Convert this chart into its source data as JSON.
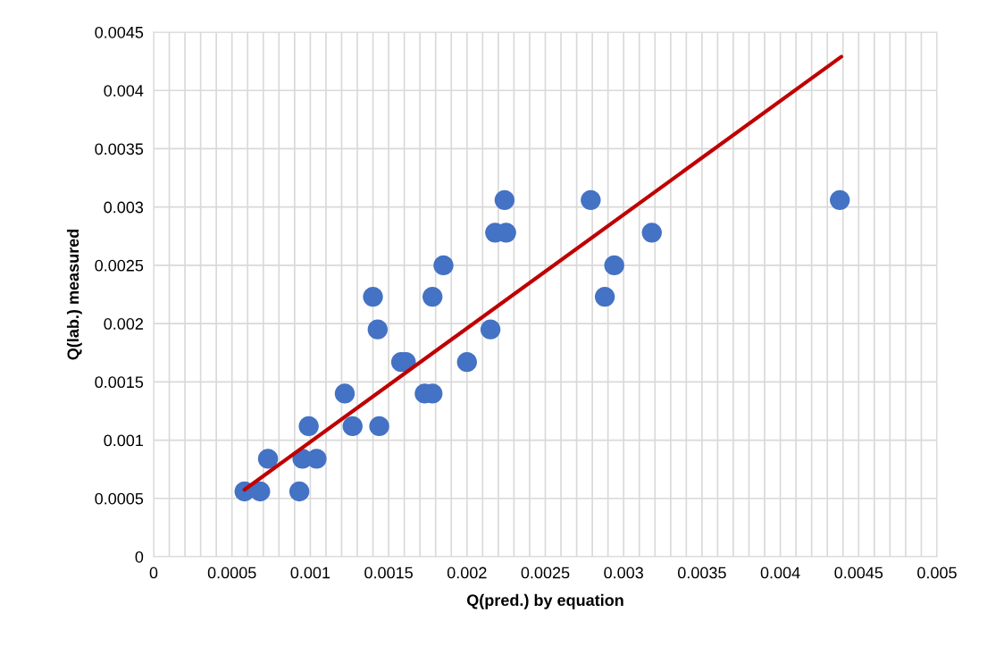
{
  "chart_data": {
    "type": "scatter",
    "xlabel": "Q(pred.) by equation",
    "ylabel": "Q(lab.) measured",
    "xlim": [
      0,
      0.005
    ],
    "ylim": [
      0,
      0.0045
    ],
    "xticks": [
      0,
      {
        "value": 0.0001,
        "label": null
      },
      {
        "value": 0.0002,
        "label": null
      },
      {
        "value": 0.0003,
        "label": null
      },
      {
        "value": 0.0004,
        "label": null
      },
      0.0005,
      {
        "value": 0.0006,
        "label": null
      },
      {
        "value": 0.0007,
        "label": null
      },
      {
        "value": 0.0008,
        "label": null
      },
      {
        "value": 0.0009,
        "label": null
      },
      0.001,
      {
        "value": 0.0011,
        "label": null
      },
      {
        "value": 0.0012,
        "label": null
      },
      {
        "value": 0.0013,
        "label": null
      },
      {
        "value": 0.0014,
        "label": null
      },
      0.0015,
      {
        "value": 0.0016,
        "label": null
      },
      {
        "value": 0.0017,
        "label": null
      },
      {
        "value": 0.0018,
        "label": null
      },
      {
        "value": 0.0019,
        "label": null
      },
      0.002,
      {
        "value": 0.0021,
        "label": null
      },
      {
        "value": 0.0022,
        "label": null
      },
      {
        "value": 0.0023,
        "label": null
      },
      {
        "value": 0.0024,
        "label": null
      },
      0.0025,
      {
        "value": 0.0026,
        "label": null
      },
      {
        "value": 0.0027,
        "label": null
      },
      {
        "value": 0.0028,
        "label": null
      },
      {
        "value": 0.0029,
        "label": null
      },
      0.003,
      {
        "value": 0.0031,
        "label": null
      },
      {
        "value": 0.0032,
        "label": null
      },
      {
        "value": 0.0033,
        "label": null
      },
      {
        "value": 0.0034,
        "label": null
      },
      0.0035,
      {
        "value": 0.0036,
        "label": null
      },
      {
        "value": 0.0037,
        "label": null
      },
      {
        "value": 0.0038,
        "label": null
      },
      {
        "value": 0.0039,
        "label": null
      },
      0.004,
      {
        "value": 0.0041,
        "label": null
      },
      {
        "value": 0.0042,
        "label": null
      },
      {
        "value": 0.0043,
        "label": null
      },
      {
        "value": 0.0044,
        "label": null
      },
      0.0045,
      {
        "value": 0.0046,
        "label": null
      },
      {
        "value": 0.0047,
        "label": null
      },
      {
        "value": 0.0048,
        "label": null
      },
      {
        "value": 0.0049,
        "label": null
      },
      0.005
    ],
    "yticks": [
      0,
      0.0005,
      0.001,
      0.0015,
      0.002,
      0.0025,
      0.003,
      0.0035,
      0.004,
      0.0045
    ],
    "grid": true,
    "marker": "circle",
    "series": [
      {
        "color": "#4472c4",
        "x": [
          0.00058,
          0.00068,
          0.00093,
          0.00073,
          0.00095,
          0.00104,
          0.00099,
          0.00127,
          0.00144,
          0.00122,
          0.00173,
          0.00178,
          0.00158,
          0.00161,
          0.002,
          0.00143,
          0.00215,
          0.0014,
          0.00178,
          0.00288,
          0.00185,
          0.00294,
          0.00218,
          0.00225,
          0.00318,
          0.00224,
          0.00279,
          0.00438
        ],
        "values": [
          0.00056,
          0.00056,
          0.00056,
          0.00084,
          0.00084,
          0.00084,
          0.00112,
          0.00112,
          0.00112,
          0.0014,
          0.0014,
          0.0014,
          0.00167,
          0.00167,
          0.00167,
          0.00195,
          0.00195,
          0.00223,
          0.00223,
          0.00223,
          0.0025,
          0.0025,
          0.00278,
          0.00278,
          0.00278,
          0.00306,
          0.00306,
          0.00306
        ]
      },
      {
        "type": "line",
        "color": "#c00000",
        "marker": "none",
        "x": [
          0.00058,
          0.00439
        ],
        "values": [
          0.000575,
          0.00429
        ]
      }
    ]
  }
}
